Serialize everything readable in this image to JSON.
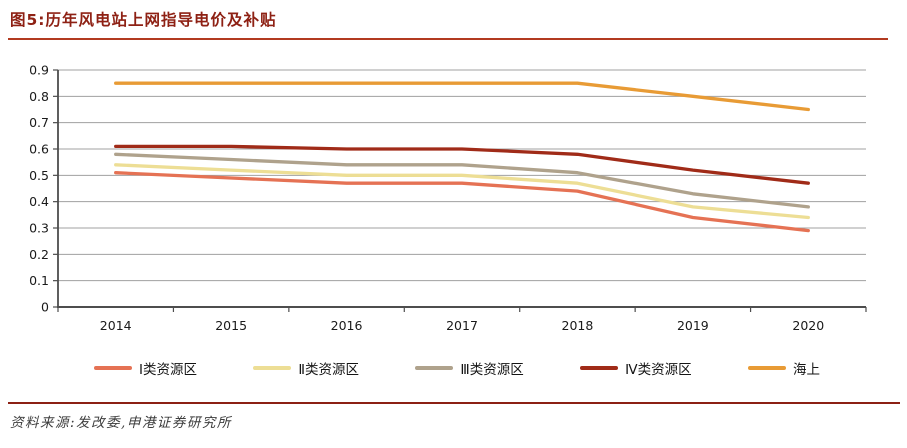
{
  "figure": {
    "title": "图5:历年风电站上网指导电价及补贴",
    "source": "资料来源:发改委,申港证券研究所"
  },
  "colors": {
    "title_text": "#8E2114",
    "title_rule": "#B23A20",
    "source_rule": "#8C2014",
    "grid": "#A0A0A0",
    "axis": "#4D4D4D",
    "tick_text": "#1A1A1A"
  },
  "chart_data": {
    "type": "line",
    "title": "历年风电站上网指导电价及补贴",
    "xlabel": "",
    "ylabel": "",
    "x_labels": [
      "2014",
      "2015",
      "2016",
      "2017",
      "2018",
      "2019",
      "2020"
    ],
    "y_tick_labels": [
      "0.9",
      "0.8",
      "0.7",
      "0.6",
      "0.5",
      "0.4",
      "0.3",
      "0.2",
      "0.1",
      "0"
    ],
    "ylim": [
      0,
      0.9
    ],
    "grid": true,
    "legend_position": "bottom",
    "series": [
      {
        "name": "Ⅰ类资源区",
        "color": "#E57254",
        "values": [
          0.51,
          0.49,
          0.47,
          0.47,
          0.44,
          0.34,
          0.29
        ]
      },
      {
        "name": "Ⅱ类资源区",
        "color": "#EDDE95",
        "values": [
          0.54,
          0.52,
          0.5,
          0.5,
          0.47,
          0.38,
          0.34
        ]
      },
      {
        "name": "Ⅲ类资源区",
        "color": "#AFA28C",
        "values": [
          0.58,
          0.56,
          0.54,
          0.54,
          0.51,
          0.43,
          0.38
        ]
      },
      {
        "name": "Ⅳ类资源区",
        "color": "#A02B18",
        "values": [
          0.61,
          0.61,
          0.6,
          0.6,
          0.58,
          0.52,
          0.47
        ]
      },
      {
        "name": "海上",
        "color": "#E89B35",
        "values": [
          0.85,
          0.85,
          0.85,
          0.85,
          0.85,
          0.8,
          0.75
        ]
      }
    ]
  }
}
